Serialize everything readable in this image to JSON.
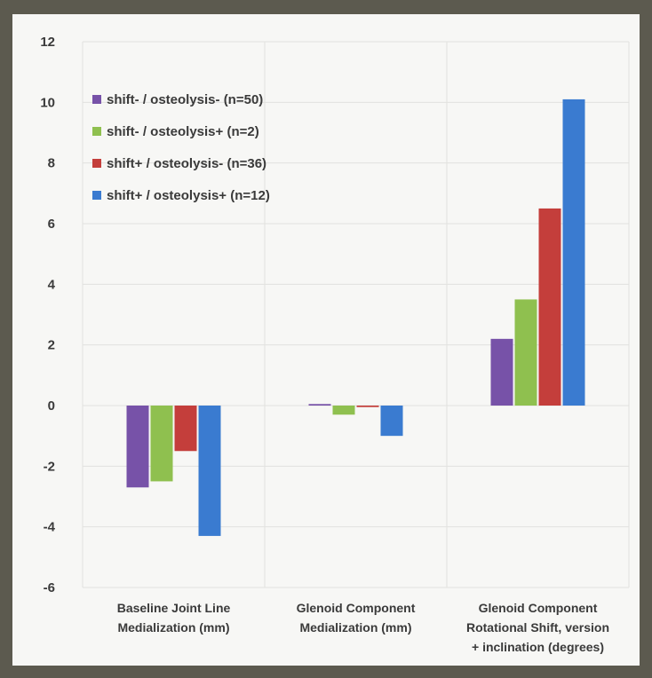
{
  "chart_data": {
    "type": "bar",
    "categories": [
      [
        "Baseline Joint Line",
        "Medialization (mm)"
      ],
      [
        "Glenoid Component",
        "Medialization (mm)"
      ],
      [
        "Glenoid Component",
        "Rotational Shift, version",
        "+ inclination (degrees)"
      ]
    ],
    "series": [
      {
        "name": "shift- / osteolysis- (n=50)",
        "color": "#7752a8",
        "values": [
          -2.7,
          0.05,
          2.2
        ]
      },
      {
        "name": "shift- / osteolysis+ (n=2)",
        "color": "#8fc04f",
        "values": [
          -2.5,
          -0.3,
          3.5
        ]
      },
      {
        "name": "shift+ / osteolysis- (n=36)",
        "color": "#c43e3b",
        "values": [
          -1.5,
          -0.05,
          6.5
        ]
      },
      {
        "name": "shift+ / osteolysis+ (n=12)",
        "color": "#3a7bd0",
        "values": [
          -4.3,
          -1.0,
          10.1
        ]
      }
    ],
    "ylim": [
      -6,
      12
    ],
    "yticks": [
      12,
      10,
      8,
      6,
      4,
      2,
      0,
      -2,
      -4,
      -6
    ],
    "grid": true,
    "legend_position": "top-left",
    "title": "",
    "xlabel": "",
    "ylabel": ""
  }
}
